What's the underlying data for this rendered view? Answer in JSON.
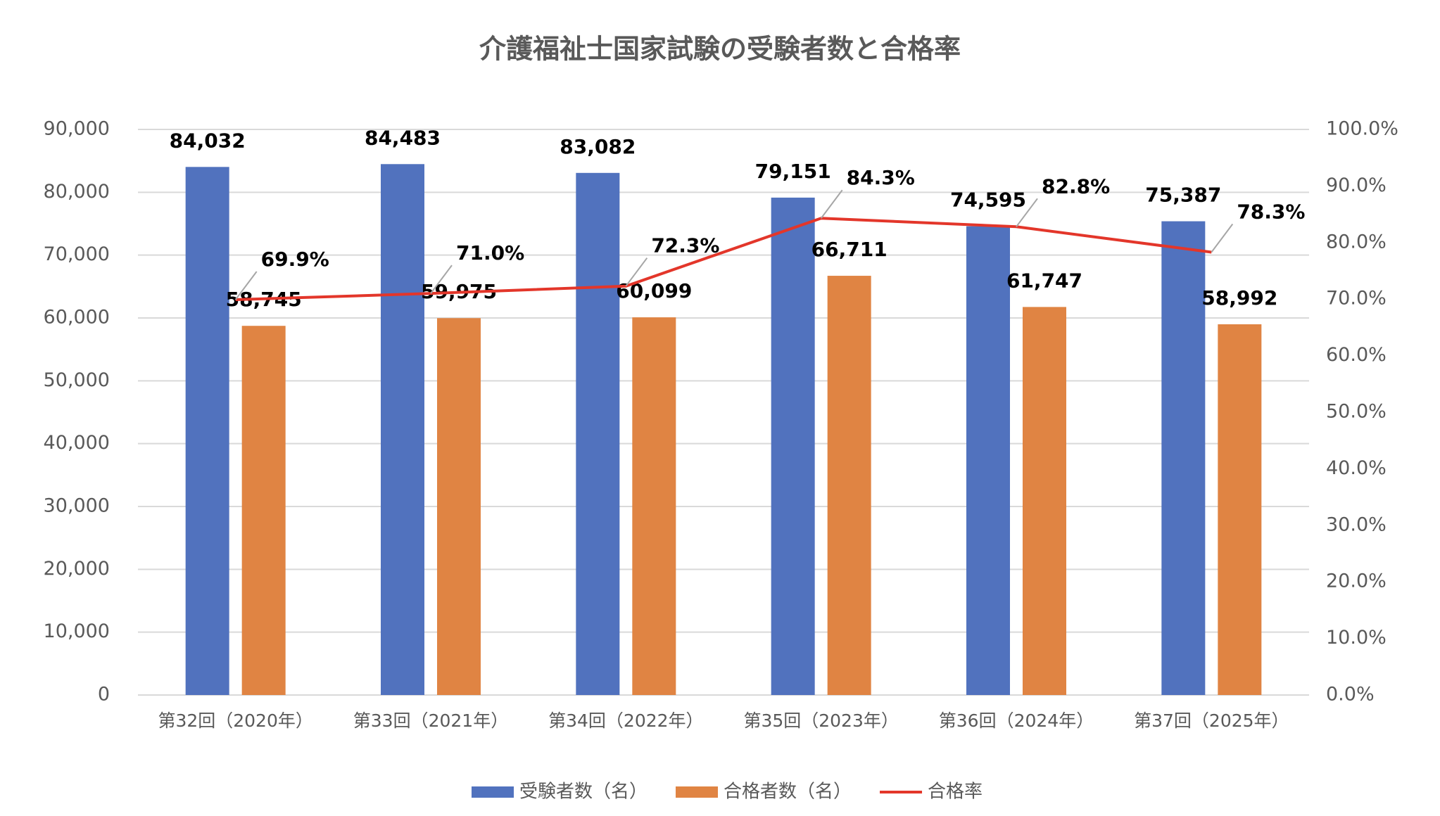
{
  "chart_data": {
    "type": "bar",
    "title": "介護福祉士国家試験の受験者数と合格率",
    "categories": [
      "第32回（2020年）",
      "第33回（2021年）",
      "第34回（2022年）",
      "第35回（2023年）",
      "第36回（2024年）",
      "第37回（2025年）"
    ],
    "series": [
      {
        "name": "受験者数（名）",
        "color": "#5172be",
        "values": [
          84032,
          84483,
          83082,
          79151,
          74595,
          75387
        ],
        "value_labels": [
          "84,032",
          "84,483",
          "83,082",
          "79,151",
          "74,595",
          "75,387"
        ]
      },
      {
        "name": "合格者数（名）",
        "color": "#e08443",
        "values": [
          58745,
          59975,
          60099,
          66711,
          61747,
          58992
        ],
        "value_labels": [
          "58,745",
          "59,975",
          "60,099",
          "66,711",
          "61,747",
          "58,992"
        ]
      },
      {
        "name": "合格率",
        "color": "#e3362a",
        "type": "line",
        "axis": "y2",
        "values": [
          69.9,
          71.0,
          72.3,
          84.3,
          82.8,
          78.3
        ],
        "value_labels": [
          "69.9%",
          "71.0%",
          "72.3%",
          "84.3%",
          "82.8%",
          "78.3%"
        ]
      }
    ],
    "ylim": [
      0,
      90000
    ],
    "yticks": [
      0,
      {
        "value": 10000,
        "label": "10,000"
      },
      {
        "value": 20000,
        "label": "20,000"
      },
      {
        "value": 30000,
        "label": "30,000"
      },
      {
        "value": 40000,
        "label": "40,000"
      },
      {
        "value": 50000,
        "label": "50,000"
      },
      {
        "value": 60000,
        "label": "60,000"
      },
      {
        "value": 70000,
        "label": "70,000"
      },
      {
        "value": 80000,
        "label": "80,000"
      },
      {
        "value": 90000,
        "label": "90,000"
      }
    ],
    "y2lim": [
      0,
      100
    ],
    "y2ticks": [
      {
        "value": 0,
        "label": "0.0%"
      },
      {
        "value": 10,
        "label": "10.0%"
      },
      {
        "value": 20,
        "label": "20.0%"
      },
      {
        "value": 30,
        "label": "30.0%"
      },
      {
        "value": 40,
        "label": "40.0%"
      },
      {
        "value": 50,
        "label": "50.0%"
      },
      {
        "value": 60,
        "label": "60.0%"
      },
      {
        "value": 70,
        "label": "70.0%"
      },
      {
        "value": 80,
        "label": "80.0%"
      },
      {
        "value": 90,
        "label": "90.0%"
      },
      {
        "value": 100,
        "label": "100.0%"
      }
    ],
    "grid": true,
    "legend": "bottom"
  }
}
